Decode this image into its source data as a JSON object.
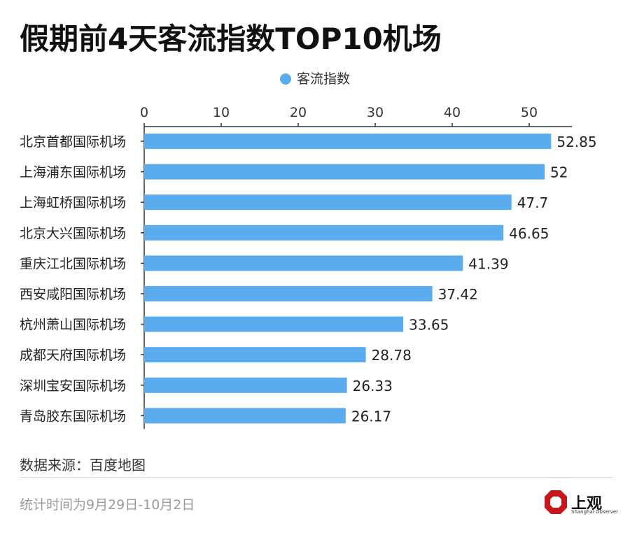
{
  "title": "假期前4天客流指数TOP10机场",
  "source": "数据来源：百度地图",
  "footnote": "统计时间为9月29日-10月2日",
  "brand": {
    "name": "上观",
    "subtitle": "Shanghai Observer",
    "color": "#c8161d"
  },
  "colors": {
    "bar": "#5aacee",
    "axis": "#333333"
  },
  "chart_data": {
    "type": "bar",
    "orientation": "horizontal",
    "categories": [
      "北京首都国际机场",
      "上海浦东国际机场",
      "上海虹桥国际机场",
      "北京大兴国际机场",
      "重庆江北国际机场",
      "西安咸阳国际机场",
      "杭州萧山国际机场",
      "成都天府国际机场",
      "深圳宝安国际机场",
      "青岛胶东国际机场"
    ],
    "series": [
      {
        "name": "客流指数",
        "values": [
          52.85,
          52,
          47.7,
          46.65,
          41.39,
          37.42,
          33.65,
          28.78,
          26.33,
          26.17
        ]
      }
    ],
    "value_labels": [
      "52.85",
      "52",
      "47.7",
      "46.65",
      "41.39",
      "37.42",
      "33.65",
      "28.78",
      "26.33",
      "26.17"
    ],
    "x_ticks": [
      0,
      10,
      20,
      30,
      40,
      50
    ],
    "xlim": [
      0,
      55
    ],
    "x_axis_position": "top",
    "legend_position": "top-center",
    "grid": false
  }
}
